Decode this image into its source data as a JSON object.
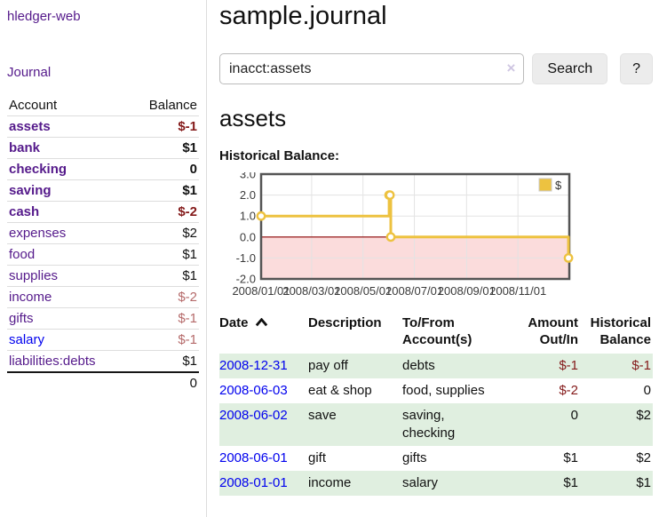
{
  "app": {
    "brand": "hledger-web"
  },
  "sidebar": {
    "nav_journal_label": "Journal",
    "accounts_table": {
      "headers": [
        "Account",
        "Balance"
      ],
      "rows": [
        {
          "account": "assets",
          "balance": "$-1",
          "indent": 1,
          "bold": true,
          "balance_tone": "negative-strong"
        },
        {
          "account": "bank",
          "balance": "$1",
          "indent": 2,
          "bold": true
        },
        {
          "account": "checking",
          "balance": "0",
          "indent": 3,
          "bold": true
        },
        {
          "account": "saving",
          "balance": "$1",
          "indent": 3,
          "bold": true
        },
        {
          "account": "cash",
          "balance": "$-2",
          "indent": 2,
          "bold": true,
          "balance_tone": "negative-strong"
        },
        {
          "account": "expenses",
          "balance": "$2",
          "indent": 1,
          "bold": false
        },
        {
          "account": "food",
          "balance": "$1",
          "indent": 2,
          "bold": false
        },
        {
          "account": "supplies",
          "balance": "$1",
          "indent": 2,
          "bold": false
        },
        {
          "account": "income",
          "balance": "$-2",
          "indent": 1,
          "bold": false,
          "balance_tone": "negative-soft"
        },
        {
          "account": "gifts",
          "balance": "$-1",
          "indent": 2,
          "bold": false,
          "balance_tone": "negative-soft"
        },
        {
          "account": "salary",
          "balance": "$-1",
          "indent": 2,
          "bold": false,
          "balance_tone": "negative-soft",
          "link_tone": "blue"
        },
        {
          "account": "liabilities:debts",
          "balance": "$1",
          "indent": 1,
          "bold": false
        }
      ],
      "total_balance": "0"
    }
  },
  "main": {
    "title": "sample.journal",
    "search": {
      "value": "inacct:assets",
      "clear_icon": "×",
      "button_label": "Search",
      "help_label": "?"
    },
    "account_heading": "assets",
    "chart_label": "Historical Balance:",
    "register_table": {
      "headers": [
        "Date",
        "Description",
        "To/From Account(s)",
        "Amount Out/In",
        "Historical Balance"
      ],
      "sort": {
        "column": "Date",
        "direction": "ascending"
      },
      "rows": [
        {
          "date": "2008-12-31",
          "description": "pay off",
          "accounts": "debts",
          "amount": "$-1",
          "amount_tone": "negative-strong",
          "balance": "$-1",
          "balance_tone": "negative-strong",
          "shaded": true
        },
        {
          "date": "2008-06-03",
          "description": "eat & shop",
          "accounts": "food, supplies",
          "amount": "$-2",
          "amount_tone": "negative-strong",
          "balance": "0",
          "shaded": false
        },
        {
          "date": "2008-06-02",
          "description": "save",
          "accounts": "saving, checking",
          "amount": "0",
          "balance": "$2",
          "shaded": true
        },
        {
          "date": "2008-06-01",
          "description": "gift",
          "accounts": "gifts",
          "amount": "$1",
          "balance": "$2",
          "shaded": false
        },
        {
          "date": "2008-01-01",
          "description": "income",
          "accounts": "salary",
          "amount": "$1",
          "balance": "$1",
          "shaded": true
        }
      ]
    }
  },
  "chart_data": {
    "type": "line",
    "title": "Historical Balance",
    "steps": true,
    "series": [
      {
        "name": "$",
        "color": "#edc240",
        "points": [
          [
            "2008-01-01",
            1
          ],
          [
            "2008-06-01",
            2
          ],
          [
            "2008-06-02",
            2
          ],
          [
            "2008-06-03",
            0
          ],
          [
            "2008-12-31",
            -1
          ]
        ]
      }
    ],
    "xlim": [
      "2008-01-01",
      "2009-01-01"
    ],
    "ylim": [
      -2,
      3
    ],
    "x_ticks": [
      "2008/01/01",
      "2008/03/01",
      "2008/05/01",
      "2008/07/01",
      "2008/09/01",
      "2008/11/01"
    ],
    "y_ticks": [
      "3.0",
      "2.0",
      "1.0",
      "0.0",
      "-1.0",
      "-2.0"
    ],
    "grid": true,
    "legend_position": "top-right",
    "negative_region_color": "#fbdcdc",
    "zero_line_color": "#8b0000",
    "border_color": "#545454",
    "grid_color": "#e3e3e3",
    "tick_label_color": "#3a3a3a"
  },
  "colors": {
    "link_purple": "#551a8b",
    "link_blue": "#0000ee",
    "negative_strong": "#841a1a",
    "negative_soft": "#b56a6a",
    "row_shade_green": "#e0efe0",
    "series_yellow": "#edc240",
    "negative_region_pink": "#fbdcdc",
    "zero_line_red": "#8b0000",
    "chart_border_gray": "#545454",
    "divider_gray": "#dddddd",
    "button_gray": "#ececec"
  }
}
